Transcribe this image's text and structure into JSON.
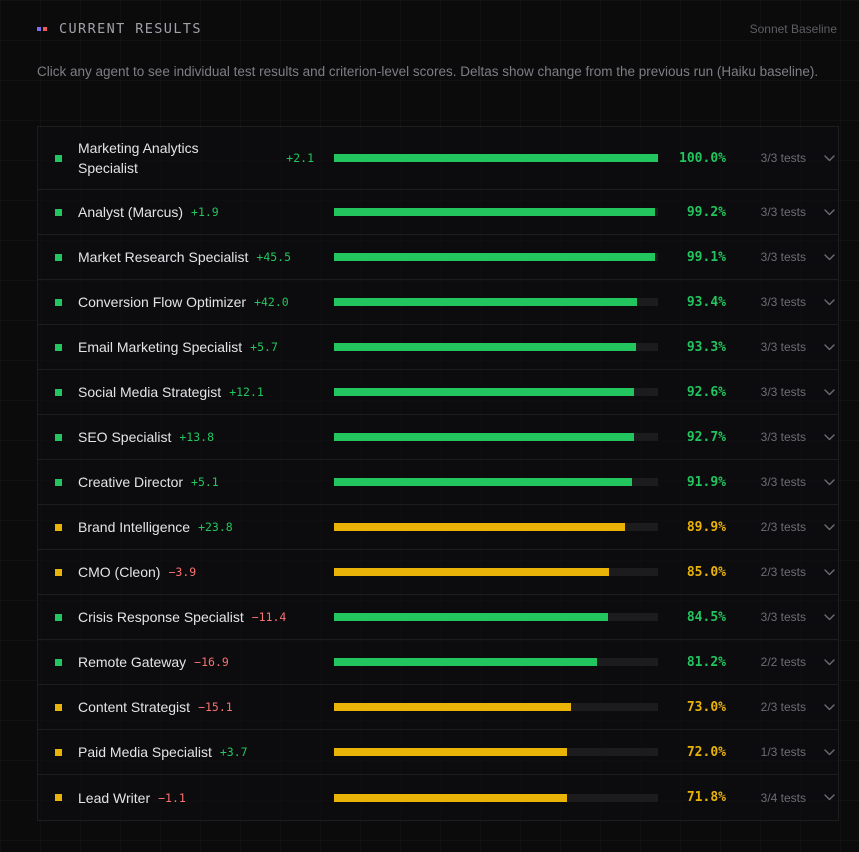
{
  "header": {
    "title": "CURRENT RESULTS",
    "right_label": "Sonnet Baseline",
    "description": "Click any agent to see individual test results and criterion-level scores. Deltas show change from the previous run (Haiku baseline)."
  },
  "colors": {
    "green": "#22c55e",
    "amber": "#eab308",
    "negative": "#f87171"
  },
  "agents": [
    {
      "name": "Marketing Analytics Specialist",
      "delta": "+2.1",
      "score": 100.0,
      "score_label": "100.0%",
      "tests": "3/3 tests",
      "status": "green"
    },
    {
      "name": "Analyst (Marcus)",
      "delta": "+1.9",
      "score": 99.2,
      "score_label": "99.2%",
      "tests": "3/3 tests",
      "status": "green"
    },
    {
      "name": "Market Research Specialist",
      "delta": "+45.5",
      "score": 99.1,
      "score_label": "99.1%",
      "tests": "3/3 tests",
      "status": "green"
    },
    {
      "name": "Conversion Flow Optimizer",
      "delta": "+42.0",
      "score": 93.4,
      "score_label": "93.4%",
      "tests": "3/3 tests",
      "status": "green"
    },
    {
      "name": "Email Marketing Specialist",
      "delta": "+5.7",
      "score": 93.3,
      "score_label": "93.3%",
      "tests": "3/3 tests",
      "status": "green"
    },
    {
      "name": "Social Media Strategist",
      "delta": "+12.1",
      "score": 92.6,
      "score_label": "92.6%",
      "tests": "3/3 tests",
      "status": "green"
    },
    {
      "name": "SEO Specialist",
      "delta": "+13.8",
      "score": 92.7,
      "score_label": "92.7%",
      "tests": "3/3 tests",
      "status": "green"
    },
    {
      "name": "Creative Director",
      "delta": "+5.1",
      "score": 91.9,
      "score_label": "91.9%",
      "tests": "3/3 tests",
      "status": "green"
    },
    {
      "name": "Brand Intelligence",
      "delta": "+23.8",
      "score": 89.9,
      "score_label": "89.9%",
      "tests": "2/3 tests",
      "status": "amber"
    },
    {
      "name": "CMO (Cleon)",
      "delta": "−3.9",
      "score": 85.0,
      "score_label": "85.0%",
      "tests": "2/3 tests",
      "status": "amber"
    },
    {
      "name": "Crisis Response Specialist",
      "delta": "−11.4",
      "score": 84.5,
      "score_label": "84.5%",
      "tests": "3/3 tests",
      "status": "green"
    },
    {
      "name": "Remote Gateway",
      "delta": "−16.9",
      "score": 81.2,
      "score_label": "81.2%",
      "tests": "2/2 tests",
      "status": "green"
    },
    {
      "name": "Content Strategist",
      "delta": "−15.1",
      "score": 73.0,
      "score_label": "73.0%",
      "tests": "2/3 tests",
      "status": "amber"
    },
    {
      "name": "Paid Media Specialist",
      "delta": "+3.7",
      "score": 72.0,
      "score_label": "72.0%",
      "tests": "1/3 tests",
      "status": "amber"
    },
    {
      "name": "Lead Writer",
      "delta": "−1.1",
      "score": 71.8,
      "score_label": "71.8%",
      "tests": "3/4 tests",
      "status": "amber"
    }
  ]
}
